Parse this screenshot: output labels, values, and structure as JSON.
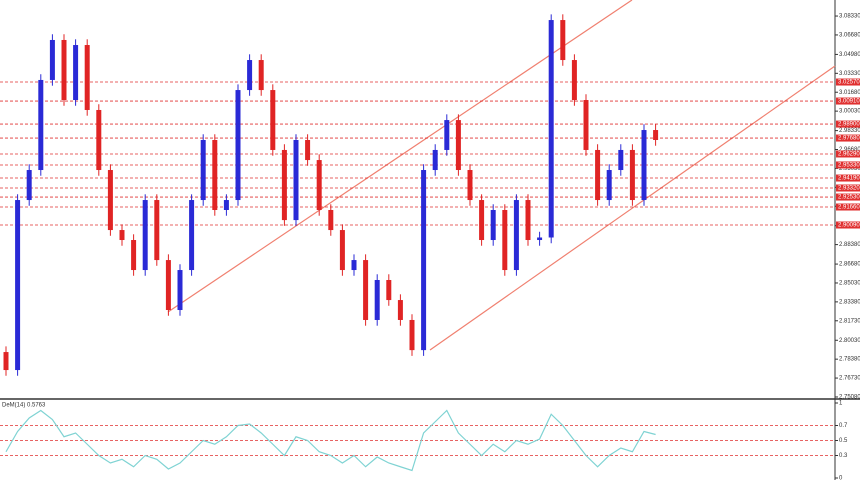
{
  "chart_data": [
    {
      "type": "candlestick",
      "open": [
        2.79,
        2.7743,
        2.9227,
        2.9489,
        3.0275,
        3.0624,
        3.01,
        3.058,
        3.0013,
        2.9489,
        2.8965,
        2.8878,
        2.8616,
        2.9227,
        2.8703,
        2.8267,
        2.8616,
        2.9227,
        2.9751,
        2.914,
        2.9227,
        3.0187,
        3.0449,
        3.0187,
        2.9664,
        2.9052,
        2.9751,
        2.9576,
        2.914,
        2.8965,
        2.8616,
        2.8703,
        2.818,
        2.8529,
        2.8354,
        2.818,
        2.7917,
        2.9489,
        2.9664,
        2.9925,
        2.9489,
        2.9227,
        2.8878,
        2.914,
        2.8616,
        2.9227,
        2.8878,
        2.89,
        3.0798,
        3.0449,
        3.01,
        2.9664,
        2.9227,
        2.9489,
        2.9664,
        2.9227,
        2.9838
      ],
      "high": [
        2.795,
        2.9277,
        2.9539,
        3.0325,
        3.0674,
        3.0674,
        3.063,
        3.063,
        3.0063,
        2.9539,
        2.9015,
        2.8928,
        2.9277,
        2.9277,
        2.8753,
        2.8666,
        2.9277,
        2.9801,
        2.9801,
        2.9277,
        3.0237,
        3.0499,
        3.0499,
        3.0237,
        2.9714,
        2.9801,
        2.9801,
        2.9626,
        2.919,
        2.9015,
        2.8753,
        2.8753,
        2.8579,
        2.8579,
        2.8404,
        2.823,
        2.9539,
        2.9714,
        2.9975,
        2.9975,
        2.9539,
        2.9277,
        2.919,
        2.919,
        2.9277,
        2.9277,
        2.895,
        3.0848,
        3.0848,
        3.0499,
        3.015,
        2.9714,
        2.9539,
        2.9714,
        2.9714,
        2.9888,
        2.9888
      ],
      "low": [
        2.7693,
        2.7693,
        2.9177,
        2.9439,
        3.0225,
        3.005,
        3.005,
        2.9963,
        2.9439,
        2.8915,
        2.8828,
        2.8566,
        2.8566,
        2.8653,
        2.8217,
        2.8217,
        2.8566,
        2.9177,
        2.909,
        2.909,
        2.9177,
        3.0137,
        3.0137,
        2.9614,
        2.9002,
        2.9002,
        2.9526,
        2.909,
        2.8915,
        2.8566,
        2.8566,
        2.813,
        2.813,
        2.8304,
        2.813,
        2.7867,
        2.7867,
        2.9439,
        2.9614,
        2.9439,
        2.9177,
        2.8828,
        2.8828,
        2.8566,
        2.8566,
        2.8828,
        2.8828,
        2.885,
        3.0399,
        3.005,
        2.9614,
        2.9177,
        2.9177,
        2.9439,
        2.9177,
        2.9177,
        2.9701
      ],
      "close": [
        2.7743,
        2.9227,
        2.9489,
        3.0275,
        3.0624,
        3.01,
        3.058,
        3.0013,
        2.9489,
        2.8965,
        2.8878,
        2.8616,
        2.9227,
        2.8703,
        2.8267,
        2.8616,
        2.9227,
        2.9751,
        2.914,
        2.9227,
        3.0187,
        3.0449,
        3.0187,
        2.9664,
        2.9052,
        2.9751,
        2.9576,
        2.914,
        2.8965,
        2.8616,
        2.8703,
        2.818,
        2.8529,
        2.8354,
        2.818,
        2.7917,
        2.9489,
        2.9664,
        2.9925,
        2.9489,
        2.9227,
        2.8878,
        2.914,
        2.8616,
        2.9227,
        2.8878,
        2.89,
        3.0798,
        3.0449,
        3.01,
        2.9664,
        2.9227,
        2.9489,
        2.9664,
        2.9227,
        2.9838,
        2.9751
      ],
      "up_color": "#2a2ad6",
      "down_color": "#e02424",
      "ylim": [
        2.7499,
        3.0973
      ],
      "yticks": [
        {
          "value": 3.0833,
          "label": "3.08330"
        },
        {
          "value": 3.0668,
          "label": "3.06680"
        },
        {
          "value": 3.0498,
          "label": "3.04980"
        },
        {
          "value": 3.0333,
          "label": "3.03330"
        },
        {
          "value": 3.0168,
          "label": "3.01680"
        },
        {
          "value": 3.0003,
          "label": "3.00030"
        },
        {
          "value": 2.9833,
          "label": "2.98330"
        },
        {
          "value": 2.9668,
          "label": "2.96680"
        },
        {
          "value": 2.9503,
          "label": "2.95030"
        },
        {
          "value": 2.9338,
          "label": "2.93380"
        },
        {
          "value": 2.9173,
          "label": "2.91730"
        },
        {
          "value": 2.9003,
          "label": "2.90030"
        },
        {
          "value": 2.8838,
          "label": "2.88380"
        },
        {
          "value": 2.8668,
          "label": "2.86680"
        },
        {
          "value": 2.8503,
          "label": "2.85030"
        },
        {
          "value": 2.8338,
          "label": "2.83380"
        },
        {
          "value": 2.8173,
          "label": "2.81730"
        },
        {
          "value": 2.8003,
          "label": "2.80030"
        },
        {
          "value": 2.7838,
          "label": "2.78380"
        },
        {
          "value": 2.7673,
          "label": "2.76730"
        },
        {
          "value": 2.7508,
          "label": "2.75080"
        }
      ],
      "levels": [
        {
          "value": 3.0257,
          "label": "3.02570"
        },
        {
          "value": 3.0091,
          "label": "3.00910"
        },
        {
          "value": 2.989,
          "label": "2.98900"
        },
        {
          "value": 2.9768,
          "label": "2.97680"
        },
        {
          "value": 2.9629,
          "label": "2.96290"
        },
        {
          "value": 2.9533,
          "label": "2.95330"
        },
        {
          "value": 2.9419,
          "label": "2.94190"
        },
        {
          "value": 2.9332,
          "label": "2.93320"
        },
        {
          "value": 2.9253,
          "label": "2.92530"
        },
        {
          "value": 2.9166,
          "label": "2.91660"
        },
        {
          "value": 2.9009,
          "label": "2.90090"
        }
      ],
      "level_color": "#e03030"
    },
    {
      "type": "line",
      "title": "DeM(14) 0.5763",
      "series": [
        {
          "color": "#7fd3d3",
          "values": [
            0.35,
            0.62,
            0.8,
            0.9,
            0.78,
            0.55,
            0.6,
            0.45,
            0.3,
            0.2,
            0.25,
            0.15,
            0.3,
            0.25,
            0.12,
            0.2,
            0.35,
            0.5,
            0.45,
            0.55,
            0.7,
            0.72,
            0.6,
            0.45,
            0.3,
            0.55,
            0.5,
            0.35,
            0.3,
            0.2,
            0.3,
            0.15,
            0.28,
            0.2,
            0.15,
            0.1,
            0.6,
            0.75,
            0.9,
            0.6,
            0.45,
            0.3,
            0.45,
            0.35,
            0.5,
            0.45,
            0.52,
            0.85,
            0.7,
            0.5,
            0.3,
            0.15,
            0.3,
            0.4,
            0.35,
            0.62,
            0.58
          ]
        }
      ],
      "ylim": [
        0,
        1
      ],
      "yticks": [
        1,
        0.7,
        0.5,
        0.3,
        0
      ],
      "levels": [
        0.7,
        0.5,
        0.3
      ],
      "level_color": "#e03030"
    }
  ]
}
